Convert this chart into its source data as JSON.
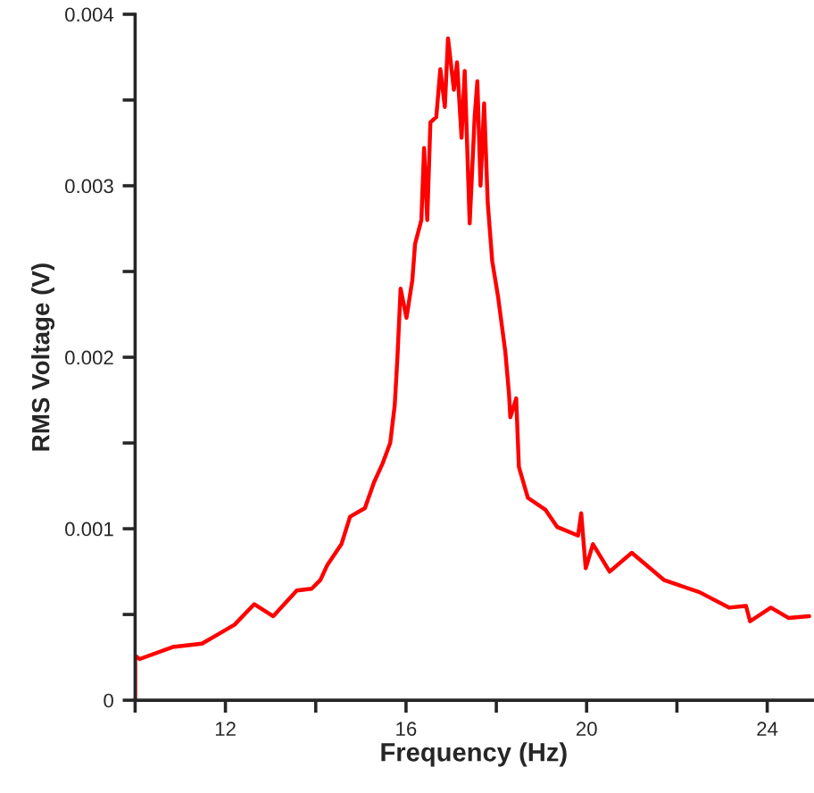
{
  "chart_data": {
    "type": "line",
    "xlabel": "Frequency (Hz)",
    "ylabel": "RMS Voltage (V)",
    "xlim": [
      10,
      25
    ],
    "ylim": [
      0,
      0.004
    ],
    "xticks": [
      {
        "value": 10,
        "label": null
      },
      12,
      {
        "value": 14,
        "label": null
      },
      16,
      {
        "value": 18,
        "label": null
      },
      20,
      {
        "value": 22,
        "label": null
      },
      24
    ],
    "yticks": [
      0,
      {
        "value": 0.0005,
        "label": null
      },
      0.001,
      {
        "value": 0.0015,
        "label": null
      },
      0.002,
      {
        "value": 0.0025,
        "label": null
      },
      0.003,
      {
        "value": 0.0035,
        "label": null
      },
      0.004
    ],
    "grid": false,
    "legend": false,
    "marker": "none",
    "line_style": "solid",
    "series": [
      {
        "color": "#ff0000",
        "x": [
          10.0,
          10.0,
          10.1,
          10.83,
          11.48,
          11.81,
          12.2,
          12.64,
          13.06,
          13.58,
          13.91,
          14.1,
          14.26,
          14.57,
          14.76,
          15.09,
          15.29,
          15.48,
          15.65,
          15.75,
          15.81,
          15.88,
          16.01,
          16.14,
          16.2,
          16.34,
          16.4,
          16.47,
          16.54,
          16.67,
          16.76,
          16.86,
          16.93,
          17.06,
          17.13,
          17.23,
          17.3,
          17.41,
          17.52,
          17.58,
          17.65,
          17.73,
          17.81,
          17.91,
          18.04,
          18.2,
          18.28,
          18.31,
          18.44,
          18.5,
          18.7,
          19.09,
          19.35,
          19.81,
          19.88,
          19.98,
          20.14,
          20.51,
          21.0,
          21.72,
          22.5,
          23.16,
          23.53,
          23.62,
          24.08,
          24.47,
          24.93
        ],
        "values": [
          0,
          0.00026,
          0.00024,
          0.00031,
          0.00033,
          0.00038,
          0.00044,
          0.00056,
          0.00049,
          0.00064,
          0.00065,
          0.0007,
          0.00079,
          0.00091,
          0.00107,
          0.00112,
          0.00127,
          0.00138,
          0.0015,
          0.00172,
          0.002,
          0.0024,
          0.00223,
          0.00245,
          0.00266,
          0.0028,
          0.00322,
          0.0028,
          0.00337,
          0.0034,
          0.00368,
          0.00346,
          0.00386,
          0.00356,
          0.00372,
          0.00328,
          0.00367,
          0.00278,
          0.0034,
          0.00361,
          0.003,
          0.00348,
          0.0029,
          0.00256,
          0.00235,
          0.00203,
          0.00179,
          0.00165,
          0.00176,
          0.00136,
          0.00118,
          0.00111,
          0.00101,
          0.00096,
          0.00109,
          0.00077,
          0.00091,
          0.00075,
          0.00086,
          0.0007,
          0.00063,
          0.00054,
          0.00055,
          0.00046,
          0.00054,
          0.00048,
          0.00049
        ]
      }
    ]
  }
}
